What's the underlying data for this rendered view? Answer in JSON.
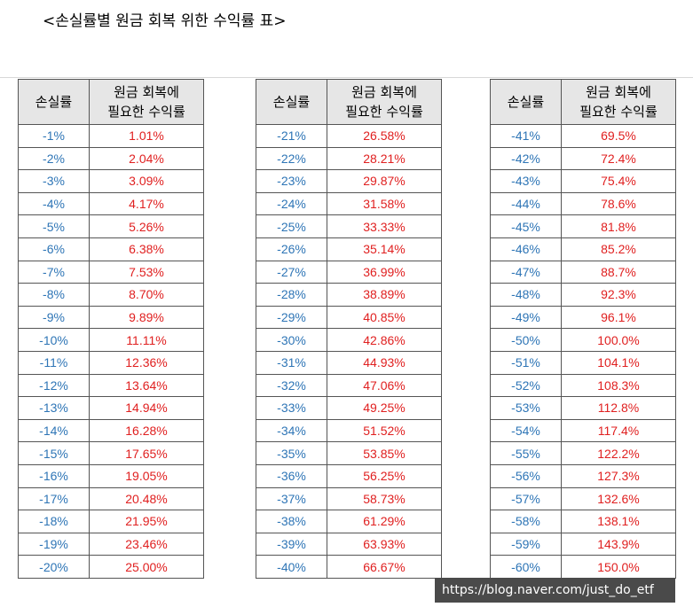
{
  "title": "<손실률별 원금 회복 위한 수익률 표>",
  "table_headers": {
    "loss": "손실률",
    "required_return": "원금 회복에\n필요한 수익률"
  },
  "tables": [
    {
      "rows": [
        {
          "loss": "-1%",
          "gain": "1.01%"
        },
        {
          "loss": "-2%",
          "gain": "2.04%"
        },
        {
          "loss": "-3%",
          "gain": "3.09%"
        },
        {
          "loss": "-4%",
          "gain": "4.17%"
        },
        {
          "loss": "-5%",
          "gain": "5.26%"
        },
        {
          "loss": "-6%",
          "gain": "6.38%"
        },
        {
          "loss": "-7%",
          "gain": "7.53%"
        },
        {
          "loss": "-8%",
          "gain": "8.70%"
        },
        {
          "loss": "-9%",
          "gain": "9.89%"
        },
        {
          "loss": "-10%",
          "gain": "11.11%"
        },
        {
          "loss": "-11%",
          "gain": "12.36%"
        },
        {
          "loss": "-12%",
          "gain": "13.64%"
        },
        {
          "loss": "-13%",
          "gain": "14.94%"
        },
        {
          "loss": "-14%",
          "gain": "16.28%"
        },
        {
          "loss": "-15%",
          "gain": "17.65%"
        },
        {
          "loss": "-16%",
          "gain": "19.05%"
        },
        {
          "loss": "-17%",
          "gain": "20.48%"
        },
        {
          "loss": "-18%",
          "gain": "21.95%"
        },
        {
          "loss": "-19%",
          "gain": "23.46%"
        },
        {
          "loss": "-20%",
          "gain": "25.00%"
        }
      ]
    },
    {
      "rows": [
        {
          "loss": "-21%",
          "gain": "26.58%"
        },
        {
          "loss": "-22%",
          "gain": "28.21%"
        },
        {
          "loss": "-23%",
          "gain": "29.87%"
        },
        {
          "loss": "-24%",
          "gain": "31.58%"
        },
        {
          "loss": "-25%",
          "gain": "33.33%"
        },
        {
          "loss": "-26%",
          "gain": "35.14%"
        },
        {
          "loss": "-27%",
          "gain": "36.99%"
        },
        {
          "loss": "-28%",
          "gain": "38.89%"
        },
        {
          "loss": "-29%",
          "gain": "40.85%"
        },
        {
          "loss": "-30%",
          "gain": "42.86%"
        },
        {
          "loss": "-31%",
          "gain": "44.93%"
        },
        {
          "loss": "-32%",
          "gain": "47.06%"
        },
        {
          "loss": "-33%",
          "gain": "49.25%"
        },
        {
          "loss": "-34%",
          "gain": "51.52%"
        },
        {
          "loss": "-35%",
          "gain": "53.85%"
        },
        {
          "loss": "-36%",
          "gain": "56.25%"
        },
        {
          "loss": "-37%",
          "gain": "58.73%"
        },
        {
          "loss": "-38%",
          "gain": "61.29%"
        },
        {
          "loss": "-39%",
          "gain": "63.93%"
        },
        {
          "loss": "-40%",
          "gain": "66.67%"
        }
      ]
    },
    {
      "rows": [
        {
          "loss": "-41%",
          "gain": "69.5%"
        },
        {
          "loss": "-42%",
          "gain": "72.4%"
        },
        {
          "loss": "-43%",
          "gain": "75.4%"
        },
        {
          "loss": "-44%",
          "gain": "78.6%"
        },
        {
          "loss": "-45%",
          "gain": "81.8%"
        },
        {
          "loss": "-46%",
          "gain": "85.2%"
        },
        {
          "loss": "-47%",
          "gain": "88.7%"
        },
        {
          "loss": "-48%",
          "gain": "92.3%"
        },
        {
          "loss": "-49%",
          "gain": "96.1%"
        },
        {
          "loss": "-50%",
          "gain": "100.0%"
        },
        {
          "loss": "-51%",
          "gain": "104.1%"
        },
        {
          "loss": "-52%",
          "gain": "108.3%"
        },
        {
          "loss": "-53%",
          "gain": "112.8%"
        },
        {
          "loss": "-54%",
          "gain": "117.4%"
        },
        {
          "loss": "-55%",
          "gain": "122.2%"
        },
        {
          "loss": "-56%",
          "gain": "127.3%"
        },
        {
          "loss": "-57%",
          "gain": "132.6%"
        },
        {
          "loss": "-58%",
          "gain": "138.1%"
        },
        {
          "loss": "-59%",
          "gain": "143.9%"
        },
        {
          "loss": "-60%",
          "gain": "150.0%"
        }
      ]
    }
  ],
  "colors": {
    "loss_text": "#2e75b6",
    "gain_text": "#e02020",
    "header_bg": "#e6e6e6"
  },
  "watermark": "https://blog.naver.com/just_do_etf"
}
